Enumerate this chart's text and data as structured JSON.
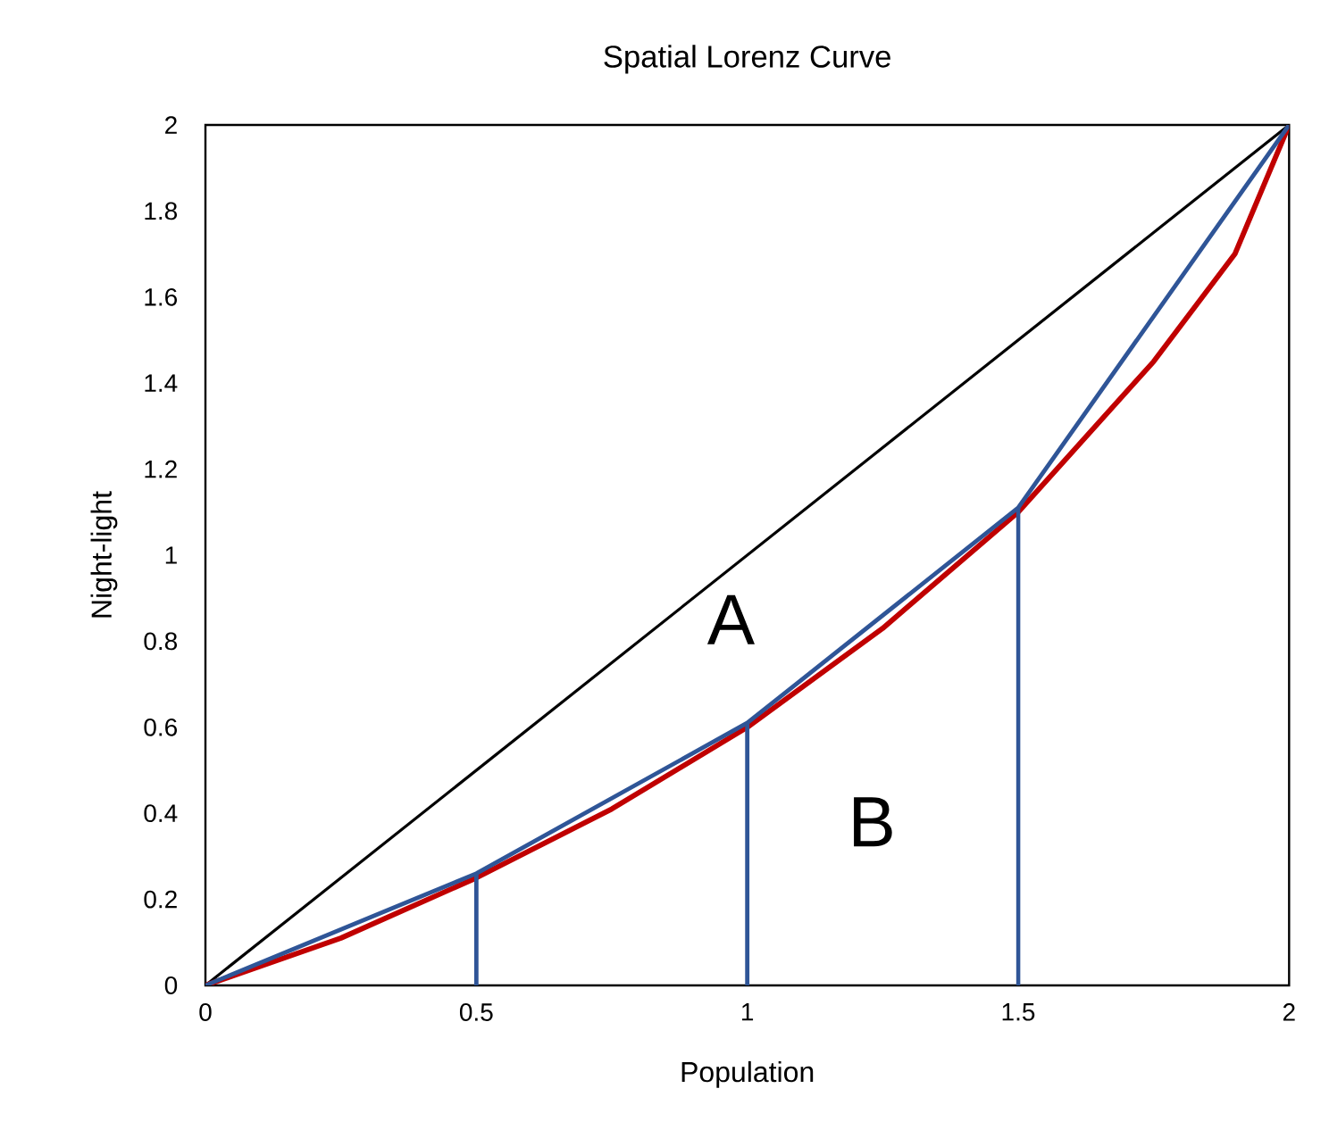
{
  "chart_data": {
    "type": "line",
    "title": "Spatial Lorenz Curve",
    "xlabel": "Population",
    "ylabel": "Night-light",
    "marker": "none",
    "xlim": [
      0,
      2
    ],
    "ylim": [
      0,
      2
    ],
    "xticks": [
      0,
      0.5,
      1,
      1.5,
      2
    ],
    "yticks": [
      0,
      0.2,
      0.4,
      0.6,
      0.8,
      1,
      1.2,
      1.4,
      1.6,
      1.8,
      2
    ],
    "series": [
      {
        "color": "#000000",
        "x": [
          0,
          2
        ],
        "values": [
          0,
          2
        ]
      },
      {
        "color": "#c00000",
        "x": [
          0,
          0.25,
          0.5,
          0.75,
          1,
          1.25,
          1.5,
          1.75,
          1.9,
          2
        ],
        "values": [
          0,
          0.11,
          0.25,
          0.41,
          0.6,
          0.83,
          1.1,
          1.45,
          1.7,
          2
        ]
      },
      {
        "color": "#2f5597",
        "x": [
          0,
          0.5,
          1,
          1.5,
          2
        ],
        "values": [
          0,
          0.26,
          0.61,
          1.11,
          2
        ]
      },
      {
        "color": "#2f5597",
        "x": [
          0.5,
          0.5
        ],
        "values": [
          0,
          0.26
        ]
      },
      {
        "color": "#2f5597",
        "x": [
          1,
          1
        ],
        "values": [
          0,
          0.61
        ]
      },
      {
        "color": "#2f5597",
        "x": [
          1.5,
          1.5
        ],
        "values": [
          0,
          1.11
        ]
      }
    ],
    "annotations": [
      "A",
      "B"
    ]
  }
}
